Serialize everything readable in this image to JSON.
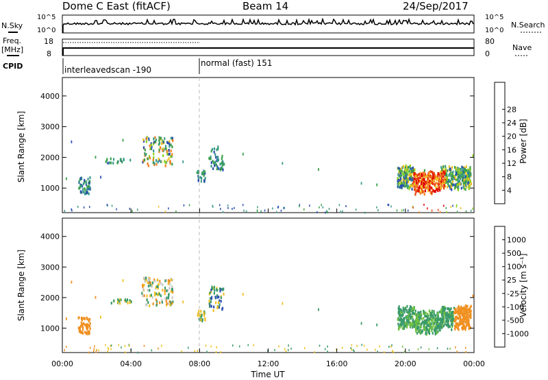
{
  "header": {
    "station": "Dome C East (fitACF)",
    "beam": "Beam 14",
    "date": "24/Sep/2017"
  },
  "left_labels": {
    "nsky": "N.Sky",
    "freq": "Freq.",
    "mhz": "[MHz]",
    "cpid": "CPID"
  },
  "right_labels": {
    "nsearch": "N.Search",
    "nave": "Nave"
  },
  "noise_panel": {
    "y_top_label": "10^5",
    "y_bottom_label": "10^0",
    "right_top_label": "10^5",
    "right_bottom_label": "10^0"
  },
  "freq_panel": {
    "left_ticks": [
      "18",
      "8"
    ],
    "right_ticks": [
      "80",
      "0"
    ]
  },
  "cpid": {
    "segments": [
      {
        "label": "interleavedscan -190",
        "start_h": 0
      },
      {
        "label": "normal (fast) 151",
        "start_h": 8
      }
    ]
  },
  "chart_data": [
    {
      "type": "heatmap",
      "name": "power",
      "ylabel": "Slant Range [km]",
      "yticks": [
        "1000",
        "2000",
        "3000",
        "4000"
      ],
      "ylim": [
        200,
        4600
      ],
      "xlim": [
        0,
        24
      ],
      "colorbar": {
        "label": "Power [dB]",
        "ticks": [
          "4",
          "8",
          "12",
          "16",
          "20",
          "24",
          "28"
        ],
        "colors": [
          "#1010e0",
          "#2a50b0",
          "#3a9a8a",
          "#3aa04a",
          "#8cd020",
          "#f0c020",
          "#f08020",
          "#e84010",
          "#e00000"
        ]
      }
    },
    {
      "type": "heatmap",
      "name": "velocity",
      "ylabel": "Slant Range [km]",
      "yticks": [
        "1000",
        "2000",
        "3000",
        "4000"
      ],
      "ylim": [
        200,
        4600
      ],
      "xlim": [
        0,
        24
      ],
      "colorbar": {
        "label": "Velocity [m s⁻¹]",
        "ticks": [
          "1000",
          "500",
          "100",
          "25",
          "-25",
          "-100",
          "-500",
          "-1000"
        ],
        "colors": [
          "#1010c0",
          "#3050b0",
          "#3a9a6a",
          "#70c040",
          "#c8c8c8",
          "#f0c020",
          "#f09020",
          "#f04010",
          "#e00000"
        ]
      }
    }
  ],
  "xaxis": {
    "ticks": [
      "00:00",
      "04:00",
      "08:00",
      "12:00",
      "16:00",
      "20:00",
      "00:00"
    ],
    "label": "Time UT"
  }
}
